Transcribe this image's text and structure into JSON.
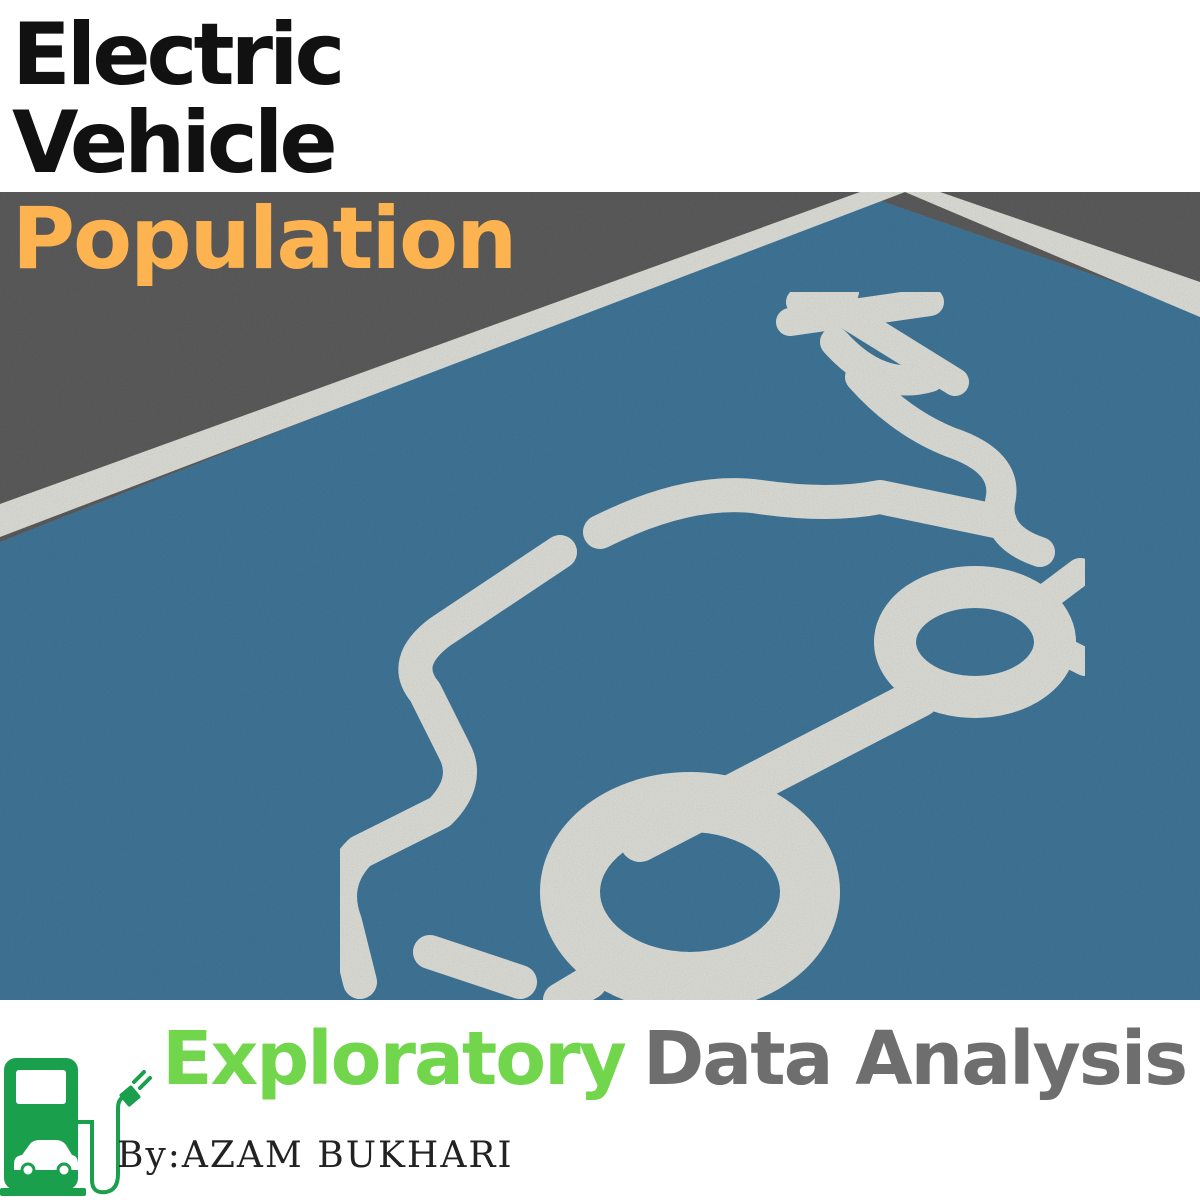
{
  "title": {
    "line1": "Electric",
    "line2": "Vehicle",
    "line3": "Population"
  },
  "subtitle": {
    "word1": "Exploratory",
    "word2": "Data Analysis"
  },
  "byline": "By:AZAM BUKHARI",
  "icons": {
    "photo": "ev-charging-parking-spot-photo",
    "badge": "ev-charging-station-icon"
  },
  "colors": {
    "title_text": "#111111",
    "population": "#FDB34F",
    "exploratory": "#72D64C",
    "data_analysis": "#6E6E6E",
    "icon_green": "#1A9F4C",
    "asphalt": "#5a5a5a",
    "parking_blue": "#3f7496"
  }
}
